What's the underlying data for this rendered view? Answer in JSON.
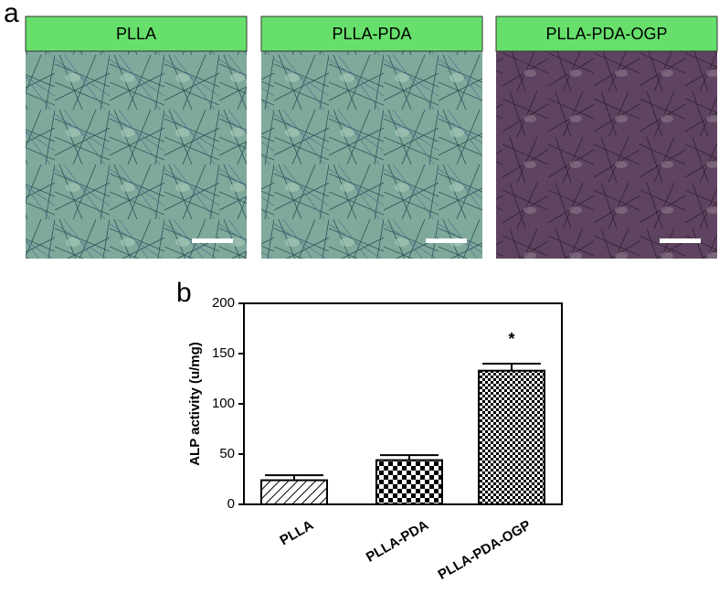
{
  "panel_a": {
    "label": "a",
    "images": [
      {
        "label": "PLLA"
      },
      {
        "label": "PLLA-PDA"
      },
      {
        "label": "PLLA-PDA-OGP"
      }
    ]
  },
  "chart_data": {
    "type": "bar",
    "panel_label": "b",
    "y_label": "ALP activity (u/mg)",
    "categories": [
      "PLLA",
      "PLLA-PDA",
      "PLLA-PDA-OGP"
    ],
    "values": [
      24,
      44,
      133
    ],
    "errors": [
      5,
      5,
      7
    ],
    "ylim": [
      0,
      200
    ],
    "yticks": [
      0,
      50,
      100,
      150,
      200
    ],
    "annotations": [
      {
        "text": "*",
        "category": "PLLA-PDA-OGP"
      }
    ]
  }
}
